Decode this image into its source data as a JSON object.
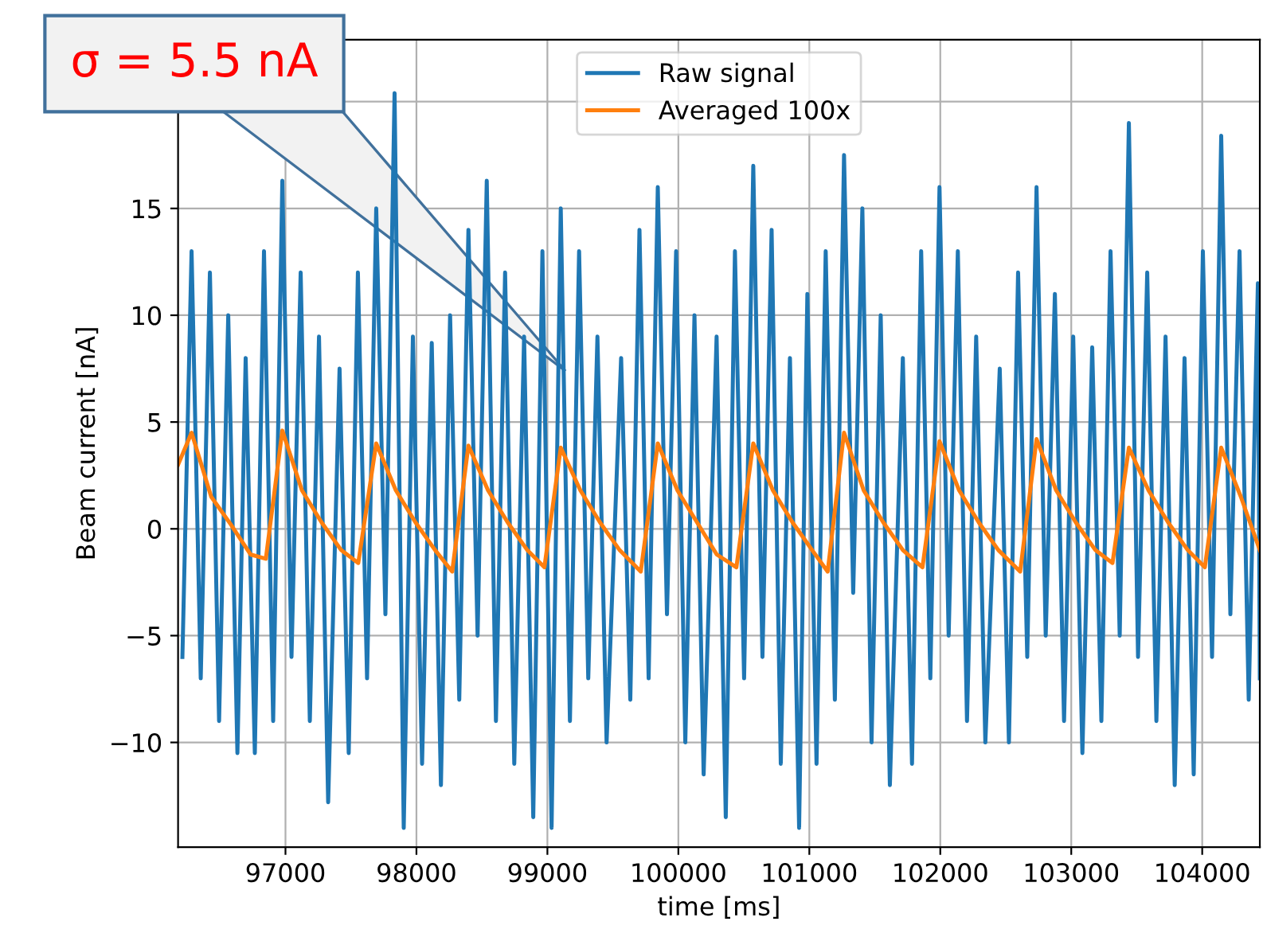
{
  "chart_data": {
    "type": "line",
    "xlabel": "time [ms]",
    "ylabel": "Beam current [nA]",
    "xlim": [
      96180,
      104440
    ],
    "xticks": [
      97000,
      98000,
      99000,
      100000,
      101000,
      102000,
      103000,
      104000
    ],
    "ylim": [
      -14.9,
      22.9
    ],
    "yticks": [
      -10,
      -5,
      0,
      5,
      10,
      15,
      {
        "value": 20,
        "label": null
      }
    ],
    "grid": true,
    "legend": "top",
    "annotations": [
      "σ = 5.5 nA"
    ],
    "series": [
      {
        "name": "Raw signal",
        "color": "#1f77b4",
        "x": [
          96213,
          96283,
          96353,
          96423,
          96493,
          96563,
          96633,
          96696,
          96766,
          96836,
          96906,
          96976,
          97046,
          97116,
          97186,
          97256,
          97326,
          97413,
          97483,
          97553,
          97623,
          97693,
          97763,
          97833,
          97903,
          97973,
          98043,
          98117,
          98187,
          98257,
          98327,
          98397,
          98467,
          98537,
          98607,
          98677,
          98747,
          98822,
          98892,
          98962,
          99032,
          99102,
          99172,
          99242,
          99312,
          99382,
          99452,
          99563,
          99633,
          99703,
          99773,
          99843,
          99913,
          99983,
          100053,
          100123,
          100193,
          100292,
          100362,
          100432,
          100502,
          100572,
          100642,
          100712,
          100782,
          100852,
          100922,
          100985,
          101055,
          101125,
          101195,
          101265,
          101335,
          101405,
          101475,
          101545,
          101615,
          101714,
          101784,
          101854,
          101924,
          101994,
          102064,
          102134,
          102204,
          102274,
          102344,
          102454,
          102524,
          102594,
          102664,
          102735,
          102805,
          102875,
          102945,
          103015,
          103085,
          103160,
          103230,
          103300,
          103370,
          103440,
          103510,
          103580,
          103650,
          103720,
          103790,
          103865,
          103935,
          104005,
          104075,
          104145,
          104215,
          104285,
          104355,
          104425,
          104440
        ],
        "values": [
          -6,
          13,
          -7,
          12,
          -9,
          10,
          -10.5,
          8,
          -10.5,
          13,
          -9,
          16.3,
          -6,
          12,
          -9,
          9,
          -12.8,
          7.5,
          -10.5,
          12,
          -7,
          15,
          -4,
          20.4,
          -14,
          9,
          -11,
          8.7,
          -12,
          10,
          -8,
          14,
          -5,
          16.3,
          -9,
          12,
          -11,
          9,
          -13.5,
          13,
          -14,
          15,
          -9,
          13,
          -7,
          9,
          -10,
          8,
          -8,
          14,
          -7,
          16,
          -4,
          13,
          -10,
          10,
          -11.5,
          9,
          -13.5,
          13,
          -7,
          17,
          -6,
          14,
          -11,
          8,
          -14,
          11,
          -11,
          13,
          -8,
          17.5,
          -3,
          15,
          -10,
          10,
          -12,
          8,
          -11,
          13,
          -7,
          16,
          -5,
          13,
          -9,
          9,
          -10,
          7.5,
          -10,
          12,
          -6,
          16,
          -5,
          11,
          -9,
          9,
          -10.5,
          8.5,
          -9,
          13,
          -5,
          19,
          -6,
          12,
          -9,
          9,
          -12,
          8,
          -11.5,
          13,
          -6,
          18.4,
          -4,
          13,
          -8,
          11.5,
          -7
        ]
      },
      {
        "name": "Averaged 100x",
        "color": "#ff7f0e",
        "x": [
          96180,
          96283,
          96433,
          96583,
          96733,
          96850,
          96976,
          97126,
          97276,
          97426,
          97556,
          97693,
          97843,
          97993,
          98143,
          98273,
          98397,
          98547,
          98697,
          98847,
          98977,
          99102,
          99252,
          99402,
          99552,
          99713,
          99843,
          99993,
          100143,
          100293,
          100443,
          100572,
          100722,
          100872,
          101022,
          101140,
          101265,
          101415,
          101565,
          101715,
          101864,
          101994,
          102144,
          102294,
          102444,
          102610,
          102735,
          102885,
          103035,
          103185,
          103315,
          103440,
          103590,
          103740,
          103890,
          104020,
          104145,
          104295,
          104440
        ],
        "values": [
          3,
          4.5,
          1.5,
          0.2,
          -1.2,
          -1.4,
          4.6,
          1.8,
          0.3,
          -1.0,
          -1.6,
          4.0,
          1.8,
          0.3,
          -1.0,
          -2.0,
          3.9,
          1.8,
          0.3,
          -1.0,
          -1.8,
          3.8,
          1.8,
          0.3,
          -1.0,
          -2.0,
          4.0,
          1.8,
          0.3,
          -1.2,
          -1.8,
          4.0,
          1.8,
          0.3,
          -1.0,
          -2.0,
          4.5,
          1.8,
          0.3,
          -1.0,
          -1.8,
          4.1,
          1.8,
          0.3,
          -1.0,
          -2.0,
          4.2,
          1.8,
          0.3,
          -1.0,
          -1.6,
          3.8,
          1.8,
          0.3,
          -1.0,
          -1.8,
          3.8,
          1.5,
          -1.0
        ]
      }
    ]
  }
}
